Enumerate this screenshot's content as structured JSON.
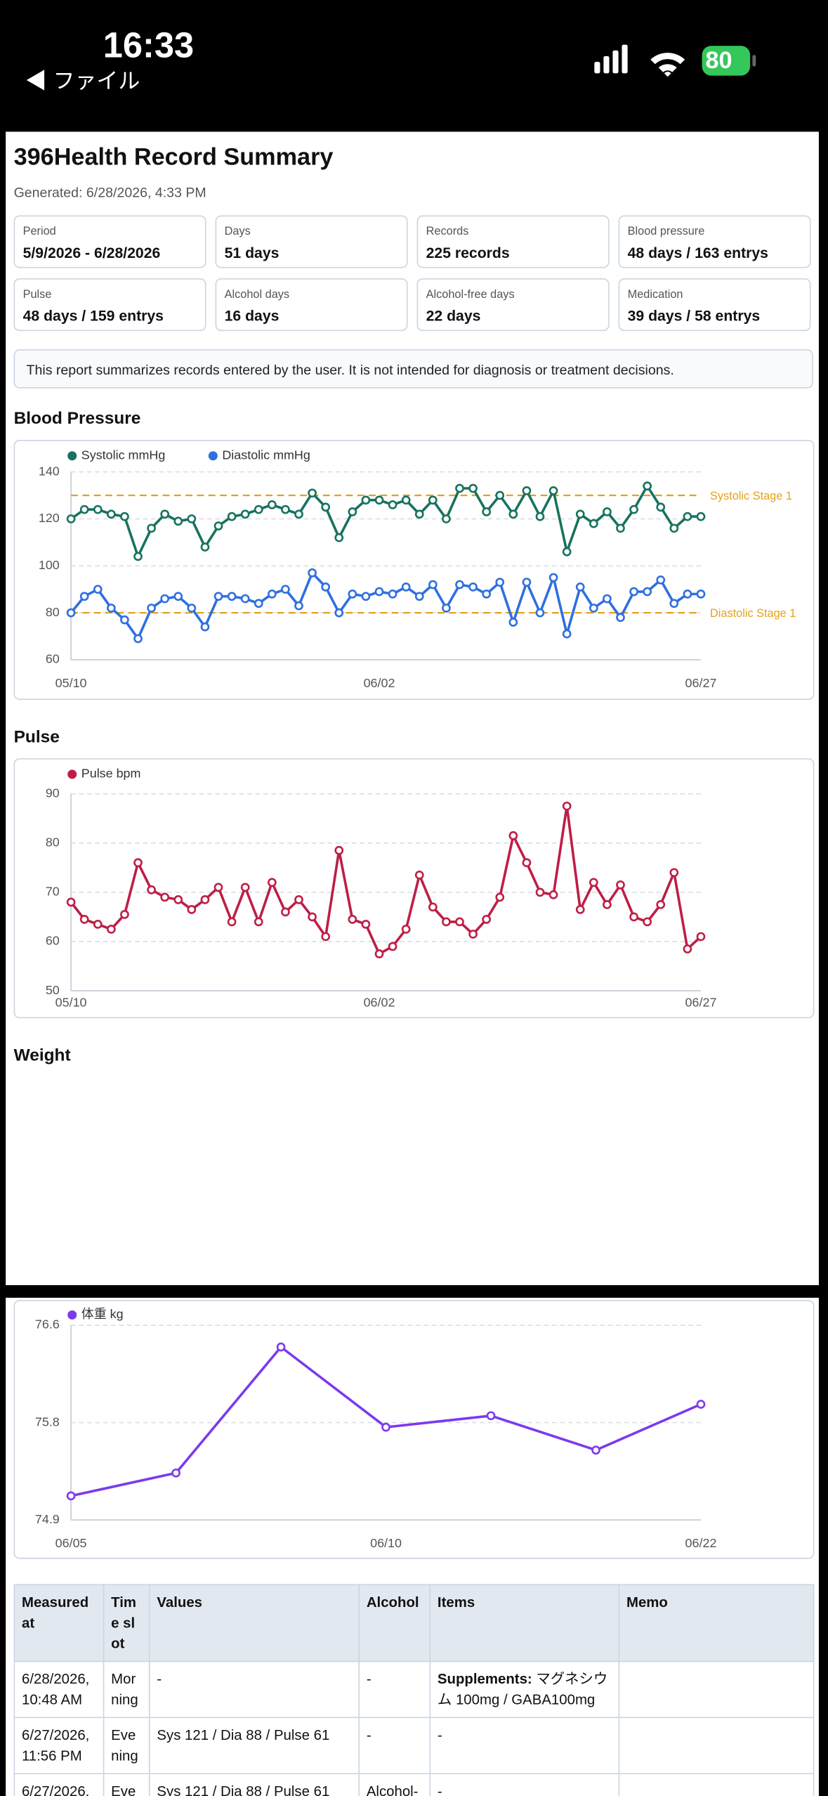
{
  "status_bar": {
    "time": "16:33",
    "back": "◀ ファイル",
    "battery": "80"
  },
  "header": {
    "title": "396Health Record Summary",
    "generated": "Generated: 6/28/2026, 4:33 PM"
  },
  "cards": [
    {
      "label": "Period",
      "value": "5/9/2026 - 6/28/2026"
    },
    {
      "label": "Days",
      "value": "51 days"
    },
    {
      "label": "Records",
      "value": "225 records"
    },
    {
      "label": "Blood pressure",
      "value": "48 days / 163 entrys"
    },
    {
      "label": "Pulse",
      "value": "48 days / 159 entrys"
    },
    {
      "label": "Alcohol days",
      "value": "16 days"
    },
    {
      "label": "Alcohol-free days",
      "value": "22 days"
    },
    {
      "label": "Medication",
      "value": "39 days / 58 entrys"
    }
  ],
  "notice": "This report summarizes records entered by the user. It is not intended for diagnosis or treatment decisions.",
  "chart_data": [
    {
      "type": "line",
      "title": "Blood Pressure",
      "grid": true,
      "categories": [
        "05/10",
        null,
        null,
        null,
        null,
        null,
        null,
        null,
        null,
        null,
        null,
        null,
        null,
        null,
        null,
        null,
        null,
        null,
        null,
        null,
        null,
        null,
        null,
        "06/02",
        null,
        null,
        null,
        null,
        null,
        null,
        null,
        null,
        null,
        null,
        null,
        null,
        null,
        null,
        null,
        null,
        null,
        null,
        null,
        null,
        null,
        null,
        null,
        "06/27"
      ],
      "series": [
        {
          "name": "Systolic mmHg",
          "color": "#17725e",
          "values": [
            120,
            124,
            124,
            122,
            121,
            104,
            116,
            122,
            119,
            120,
            108,
            117,
            121,
            122,
            124,
            126,
            124,
            122,
            131,
            125,
            112,
            123,
            128,
            128,
            126,
            128,
            122,
            128,
            120,
            133,
            133,
            123,
            130,
            122,
            132,
            121,
            132,
            106,
            122,
            118,
            123,
            116,
            124,
            134,
            125,
            116,
            121,
            121
          ]
        },
        {
          "name": "Diastolic mmHg",
          "color": "#2f6fdf",
          "values": [
            80,
            87,
            90,
            82,
            77,
            69,
            82,
            86,
            87,
            82,
            74,
            87,
            87,
            86,
            84,
            88,
            90,
            83,
            97,
            91,
            80,
            88,
            87,
            89,
            88,
            91,
            87,
            92,
            82,
            92,
            91,
            88,
            93,
            76,
            93,
            80,
            95,
            71,
            91,
            82,
            86,
            78,
            89,
            89,
            94,
            84,
            88,
            88
          ]
        }
      ],
      "thresholds": [
        {
          "value": 130,
          "label": "Systolic Stage 1",
          "color": "#e3a21a"
        },
        {
          "value": 80,
          "label": "Diastolic Stage 1",
          "color": "#e3a21a"
        }
      ],
      "ylim": [
        60,
        140
      ],
      "yticks": [
        60,
        80,
        100,
        120,
        140
      ]
    },
    {
      "type": "line",
      "title": "Pulse",
      "grid": true,
      "categories": [
        "05/10",
        null,
        null,
        null,
        null,
        null,
        null,
        null,
        null,
        null,
        null,
        null,
        null,
        null,
        null,
        null,
        null,
        null,
        null,
        null,
        null,
        null,
        null,
        "06/02",
        null,
        null,
        null,
        null,
        null,
        null,
        null,
        null,
        null,
        null,
        null,
        null,
        null,
        null,
        null,
        null,
        null,
        null,
        null,
        null,
        null,
        null,
        null,
        "06/27"
      ],
      "series": [
        {
          "name": "Pulse bpm",
          "color": "#be1e45",
          "values": [
            68,
            64.5,
            63.5,
            62.5,
            65.5,
            76,
            70.5,
            69,
            68.5,
            66.5,
            68.5,
            71,
            64,
            71,
            64,
            72,
            66,
            68.5,
            65,
            61,
            78.5,
            64.5,
            63.5,
            57.5,
            59,
            62.5,
            73.5,
            67,
            64,
            64,
            61.5,
            64.5,
            69,
            81.5,
            76,
            70,
            69.5,
            87.5,
            66.5,
            72,
            67.5,
            71.5,
            65,
            64,
            67.5,
            74,
            58.5,
            61
          ]
        }
      ],
      "ylim": [
        50,
        90
      ],
      "yticks": [
        50,
        60,
        70,
        80,
        90
      ]
    },
    {
      "type": "line",
      "title": "Weight",
      "grid": true,
      "categories": [
        "06/05",
        null,
        null,
        "06/10",
        null,
        null,
        "06/22"
      ],
      "series": [
        {
          "name": "体重 kg",
          "color": "#7c3aed",
          "values": [
            75.11,
            75.31,
            76.41,
            75.71,
            75.81,
            75.51,
            75.91
          ]
        }
      ],
      "ylim": [
        74.9,
        76.6
      ],
      "yticks": [
        74.9,
        {
          "value": 75.75,
          "label": "75.8"
        },
        76.6
      ]
    }
  ],
  "table": {
    "columns": [
      "Measured at",
      "Time slot",
      "Values",
      "Alcohol",
      "Items",
      "Memo"
    ],
    "rows": [
      {
        "measured": "6/28/2026, 10:48 AM",
        "slot": "Morning",
        "values": "-",
        "alcohol": "-",
        "items": {
          "label": "Supplements:",
          "text": "マグネシウム 100mg / GABA100mg"
        }
      },
      {
        "measured": "6/27/2026, 11:56 PM",
        "slot": "Evening",
        "values": "Sys 121 / Dia 88 / Pulse 61",
        "alcohol": "-",
        "items": {
          "text": "-"
        }
      },
      {
        "measured": "6/27/2026,",
        "slot": "Evening",
        "values": "Sys 121 / Dia 88 / Pulse 61",
        "alcohol": "Alcohol-",
        "items": {
          "text": "-"
        }
      }
    ]
  }
}
